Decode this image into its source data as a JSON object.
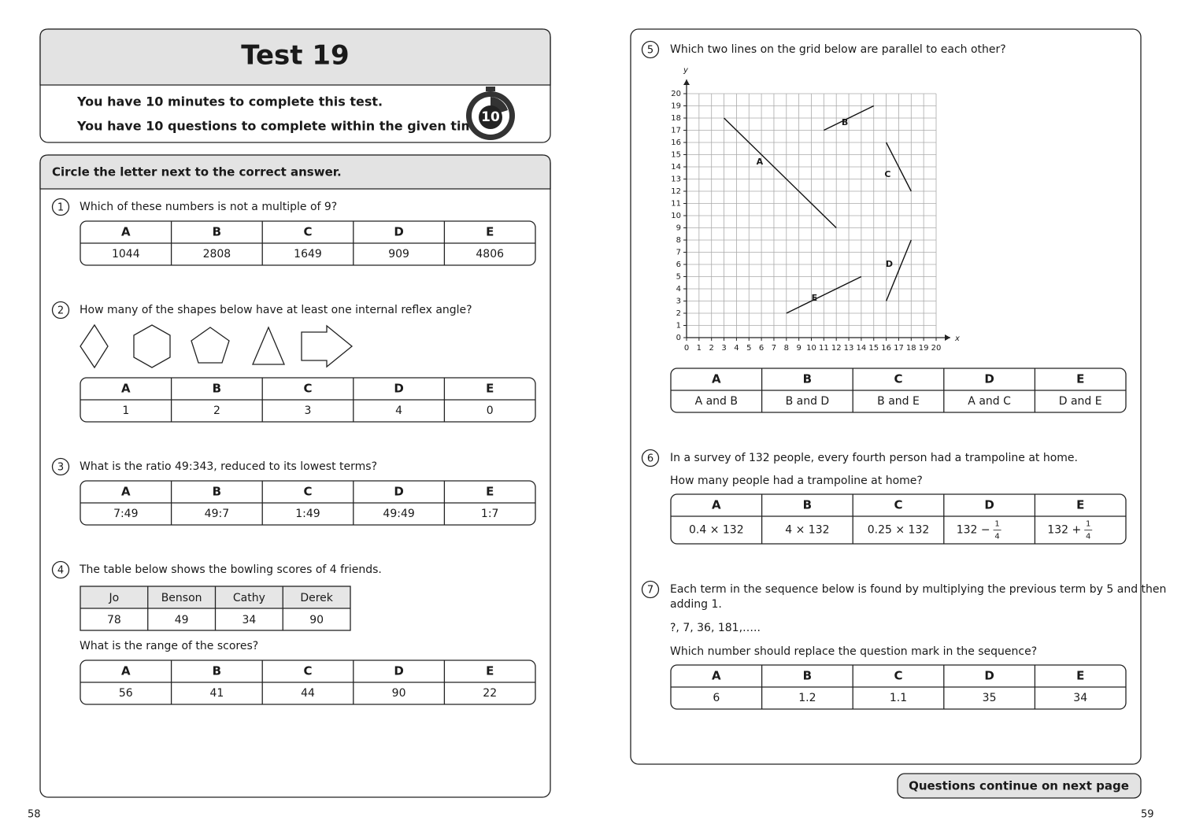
{
  "header": {
    "title": "Test 19",
    "lines": [
      "You have 10 minutes to complete this test.",
      "You have 10 questions to complete within the given time."
    ],
    "timer": "10"
  },
  "instruction": "Circle the letter next to the correct answer.",
  "letters": [
    "A",
    "B",
    "C",
    "D",
    "E"
  ],
  "questions": [
    {
      "number": "1",
      "text": [
        "Which of these numbers is not a multiple of 9?"
      ],
      "answers": [
        "1044",
        "2808",
        "1649",
        "909",
        "4806"
      ]
    },
    {
      "number": "2",
      "text": [
        "How many of the shapes below have at least one internal reflex angle?"
      ],
      "answers": [
        "1",
        "2",
        "3",
        "4",
        "0"
      ]
    },
    {
      "number": "3",
      "text": [
        "What is the ratio 49:343, reduced to its lowest terms?"
      ],
      "answers": [
        "7:49",
        "49:7",
        "1:49",
        "49:49",
        "1:7"
      ]
    },
    {
      "number": "4",
      "text": [
        "The table below shows the bowling scores of 4 friends."
      ],
      "scores": {
        "names": [
          "Jo",
          "Benson",
          "Cathy",
          "Derek"
        ],
        "values": [
          "78",
          "49",
          "34",
          "90"
        ]
      },
      "text_after": "What is the range of the scores?",
      "answers": [
        "56",
        "41",
        "44",
        "90",
        "22"
      ]
    },
    {
      "number": "5",
      "text": [
        "Which two lines on the grid below are parallel to each other?"
      ],
      "grid": {
        "x_label": "x",
        "y_label": "y",
        "xlim": [
          0,
          20
        ],
        "ylim": [
          0,
          20
        ],
        "ticks": [
          0,
          1,
          2,
          3,
          4,
          5,
          6,
          7,
          8,
          9,
          10,
          11,
          12,
          13,
          14,
          15,
          16,
          17,
          18,
          19,
          20
        ],
        "lines": [
          {
            "label": "A",
            "points": [
              [
                3,
                18
              ],
              [
                12,
                9
              ]
            ]
          },
          {
            "label": "B",
            "points": [
              [
                11,
                17
              ],
              [
                15,
                19
              ]
            ]
          },
          {
            "label": "C",
            "points": [
              [
                16,
                16
              ],
              [
                18,
                12
              ]
            ]
          },
          {
            "label": "D",
            "points": [
              [
                16,
                3
              ],
              [
                18,
                8
              ]
            ]
          },
          {
            "label": "E",
            "points": [
              [
                8,
                2
              ],
              [
                14,
                5
              ]
            ]
          }
        ]
      },
      "answers": [
        "A and B",
        "B and D",
        "B and E",
        "A and C",
        "D and E"
      ]
    },
    {
      "number": "6",
      "text": [
        "In a survey of 132 people, every fourth person had a trampoline at home.",
        "How many people had a trampoline at home?"
      ],
      "answers": [
        "0.4 × 132",
        "4 × 132",
        "0.25 × 132",
        {
          "text": "132 −",
          "numerator": "1",
          "denominator": "4"
        },
        {
          "text": "132 +",
          "numerator": "1",
          "denominator": "4"
        }
      ]
    },
    {
      "number": "7",
      "text": [
        "Each term in the sequence below is found by multiplying the previous term by 5 and then",
        "adding 1."
      ],
      "sequence": "?,  7,  36,  181,…..",
      "text_after": "Which number should replace the question mark in the sequence?",
      "answers": [
        "6",
        "1.2",
        "1.1",
        "35",
        "34"
      ]
    }
  ],
  "footer": {
    "continue": "Questions continue on next page",
    "pages": [
      "58",
      "59"
    ]
  }
}
